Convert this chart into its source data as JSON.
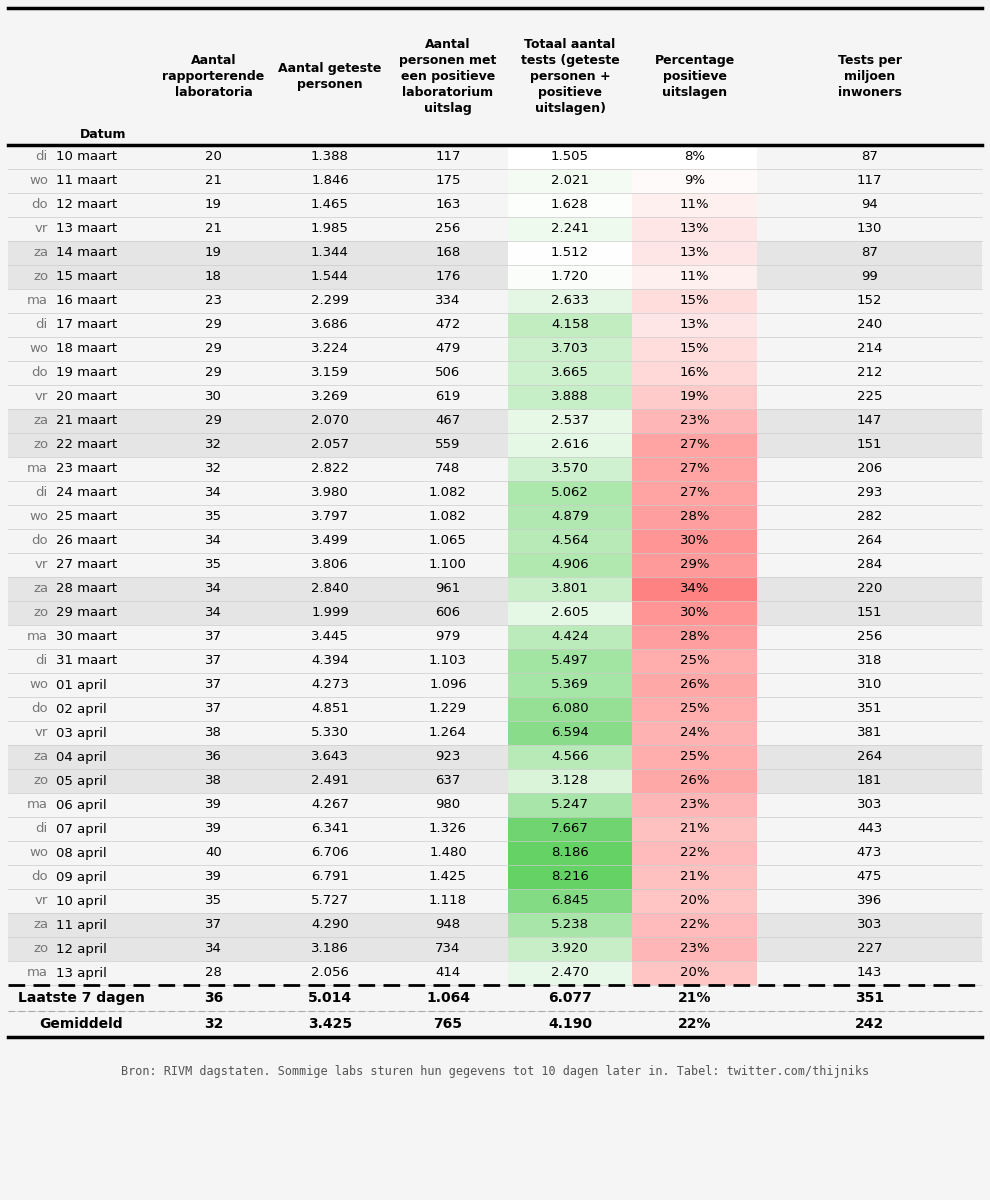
{
  "rows": [
    [
      "di",
      "10 maart",
      "20",
      "1.388",
      "117",
      "1.505",
      "8%",
      "87",
      1505,
      8
    ],
    [
      "wo",
      "11 maart",
      "21",
      "1.846",
      "175",
      "2.021",
      "9%",
      "117",
      2021,
      9
    ],
    [
      "do",
      "12 maart",
      "19",
      "1.465",
      "163",
      "1.628",
      "11%",
      "94",
      1628,
      11
    ],
    [
      "vr",
      "13 maart",
      "21",
      "1.985",
      "256",
      "2.241",
      "13%",
      "130",
      2241,
      13
    ],
    [
      "za",
      "14 maart",
      "19",
      "1.344",
      "168",
      "1.512",
      "13%",
      "87",
      1512,
      13
    ],
    [
      "zo",
      "15 maart",
      "18",
      "1.544",
      "176",
      "1.720",
      "11%",
      "99",
      1720,
      11
    ],
    [
      "ma",
      "16 maart",
      "23",
      "2.299",
      "334",
      "2.633",
      "15%",
      "152",
      2633,
      15
    ],
    [
      "di",
      "17 maart",
      "29",
      "3.686",
      "472",
      "4.158",
      "13%",
      "240",
      4158,
      13
    ],
    [
      "wo",
      "18 maart",
      "29",
      "3.224",
      "479",
      "3.703",
      "15%",
      "214",
      3703,
      15
    ],
    [
      "do",
      "19 maart",
      "29",
      "3.159",
      "506",
      "3.665",
      "16%",
      "212",
      3665,
      16
    ],
    [
      "vr",
      "20 maart",
      "30",
      "3.269",
      "619",
      "3.888",
      "19%",
      "225",
      3888,
      19
    ],
    [
      "za",
      "21 maart",
      "29",
      "2.070",
      "467",
      "2.537",
      "23%",
      "147",
      2537,
      23
    ],
    [
      "zo",
      "22 maart",
      "32",
      "2.057",
      "559",
      "2.616",
      "27%",
      "151",
      2616,
      27
    ],
    [
      "ma",
      "23 maart",
      "32",
      "2.822",
      "748",
      "3.570",
      "27%",
      "206",
      3570,
      27
    ],
    [
      "di",
      "24 maart",
      "34",
      "3.980",
      "1.082",
      "5.062",
      "27%",
      "293",
      5062,
      27
    ],
    [
      "wo",
      "25 maart",
      "35",
      "3.797",
      "1.082",
      "4.879",
      "28%",
      "282",
      4879,
      28
    ],
    [
      "do",
      "26 maart",
      "34",
      "3.499",
      "1.065",
      "4.564",
      "30%",
      "264",
      4564,
      30
    ],
    [
      "vr",
      "27 maart",
      "35",
      "3.806",
      "1.100",
      "4.906",
      "29%",
      "284",
      4906,
      29
    ],
    [
      "za",
      "28 maart",
      "34",
      "2.840",
      "961",
      "3.801",
      "34%",
      "220",
      3801,
      34
    ],
    [
      "zo",
      "29 maart",
      "34",
      "1.999",
      "606",
      "2.605",
      "30%",
      "151",
      2605,
      30
    ],
    [
      "ma",
      "30 maart",
      "37",
      "3.445",
      "979",
      "4.424",
      "28%",
      "256",
      4424,
      28
    ],
    [
      "di",
      "31 maart",
      "37",
      "4.394",
      "1.103",
      "5.497",
      "25%",
      "318",
      5497,
      25
    ],
    [
      "wo",
      "01 april",
      "37",
      "4.273",
      "1.096",
      "5.369",
      "26%",
      "310",
      5369,
      26
    ],
    [
      "do",
      "02 april",
      "37",
      "4.851",
      "1.229",
      "6.080",
      "25%",
      "351",
      6080,
      25
    ],
    [
      "vr",
      "03 april",
      "38",
      "5.330",
      "1.264",
      "6.594",
      "24%",
      "381",
      6594,
      24
    ],
    [
      "za",
      "04 april",
      "36",
      "3.643",
      "923",
      "4.566",
      "25%",
      "264",
      4566,
      25
    ],
    [
      "zo",
      "05 april",
      "38",
      "2.491",
      "637",
      "3.128",
      "26%",
      "181",
      3128,
      26
    ],
    [
      "ma",
      "06 april",
      "39",
      "4.267",
      "980",
      "5.247",
      "23%",
      "303",
      5247,
      23
    ],
    [
      "di",
      "07 april",
      "39",
      "6.341",
      "1.326",
      "7.667",
      "21%",
      "443",
      7667,
      21
    ],
    [
      "wo",
      "08 april",
      "40",
      "6.706",
      "1.480",
      "8.186",
      "22%",
      "473",
      8186,
      22
    ],
    [
      "do",
      "09 april",
      "39",
      "6.791",
      "1.425",
      "8.216",
      "21%",
      "475",
      8216,
      21
    ],
    [
      "vr",
      "10 april",
      "35",
      "5.727",
      "1.118",
      "6.845",
      "20%",
      "396",
      6845,
      20
    ],
    [
      "za",
      "11 april",
      "37",
      "4.290",
      "948",
      "5.238",
      "22%",
      "303",
      5238,
      22
    ],
    [
      "zo",
      "12 april",
      "34",
      "3.186",
      "734",
      "3.920",
      "23%",
      "227",
      3920,
      23
    ],
    [
      "ma",
      "13 april",
      "28",
      "2.056",
      "414",
      "2.470",
      "20%",
      "143",
      2470,
      20
    ]
  ],
  "footer_rows": [
    [
      "Laatste 7 dagen",
      "36",
      "5.014",
      "1.064",
      "6.077",
      "21%",
      "351"
    ],
    [
      "Gemiddeld",
      "32",
      "3.425",
      "765",
      "4.190",
      "22%",
      "242"
    ]
  ],
  "source_text": "Bron: RIVM dagstaten. Sommige labs sturen hun gegevens tot 10 dagen later in. Tabel: twitter.com/thijniks",
  "bg_color": "#f5f5f5",
  "weekend_bg": "#e5e5e5",
  "totaal_min": 1505,
  "totaal_max": 8216,
  "pct_min": 8,
  "pct_max": 34,
  "totaal_green_light": [
    204,
    255,
    204
  ],
  "totaal_green_dark": [
    102,
    205,
    102
  ],
  "pct_red_light": [
    255,
    235,
    235
  ],
  "pct_red_dark": [
    255,
    140,
    140
  ],
  "header_lines": [
    [
      "",
      "Datum",
      "Aantal\nrapporterende\nlaboratoria",
      "Aantal geteste\npersonen",
      "Aantal\npersonen met\neen positieve\nlaboratorium\nuitslag",
      "Totaal aantal\ntests (geteste\npersonen +\npositieve\nuitslagen)",
      "Percentage\npositieve\nuitslagen",
      "Tests per\nmiljoen\ninwoners"
    ]
  ]
}
